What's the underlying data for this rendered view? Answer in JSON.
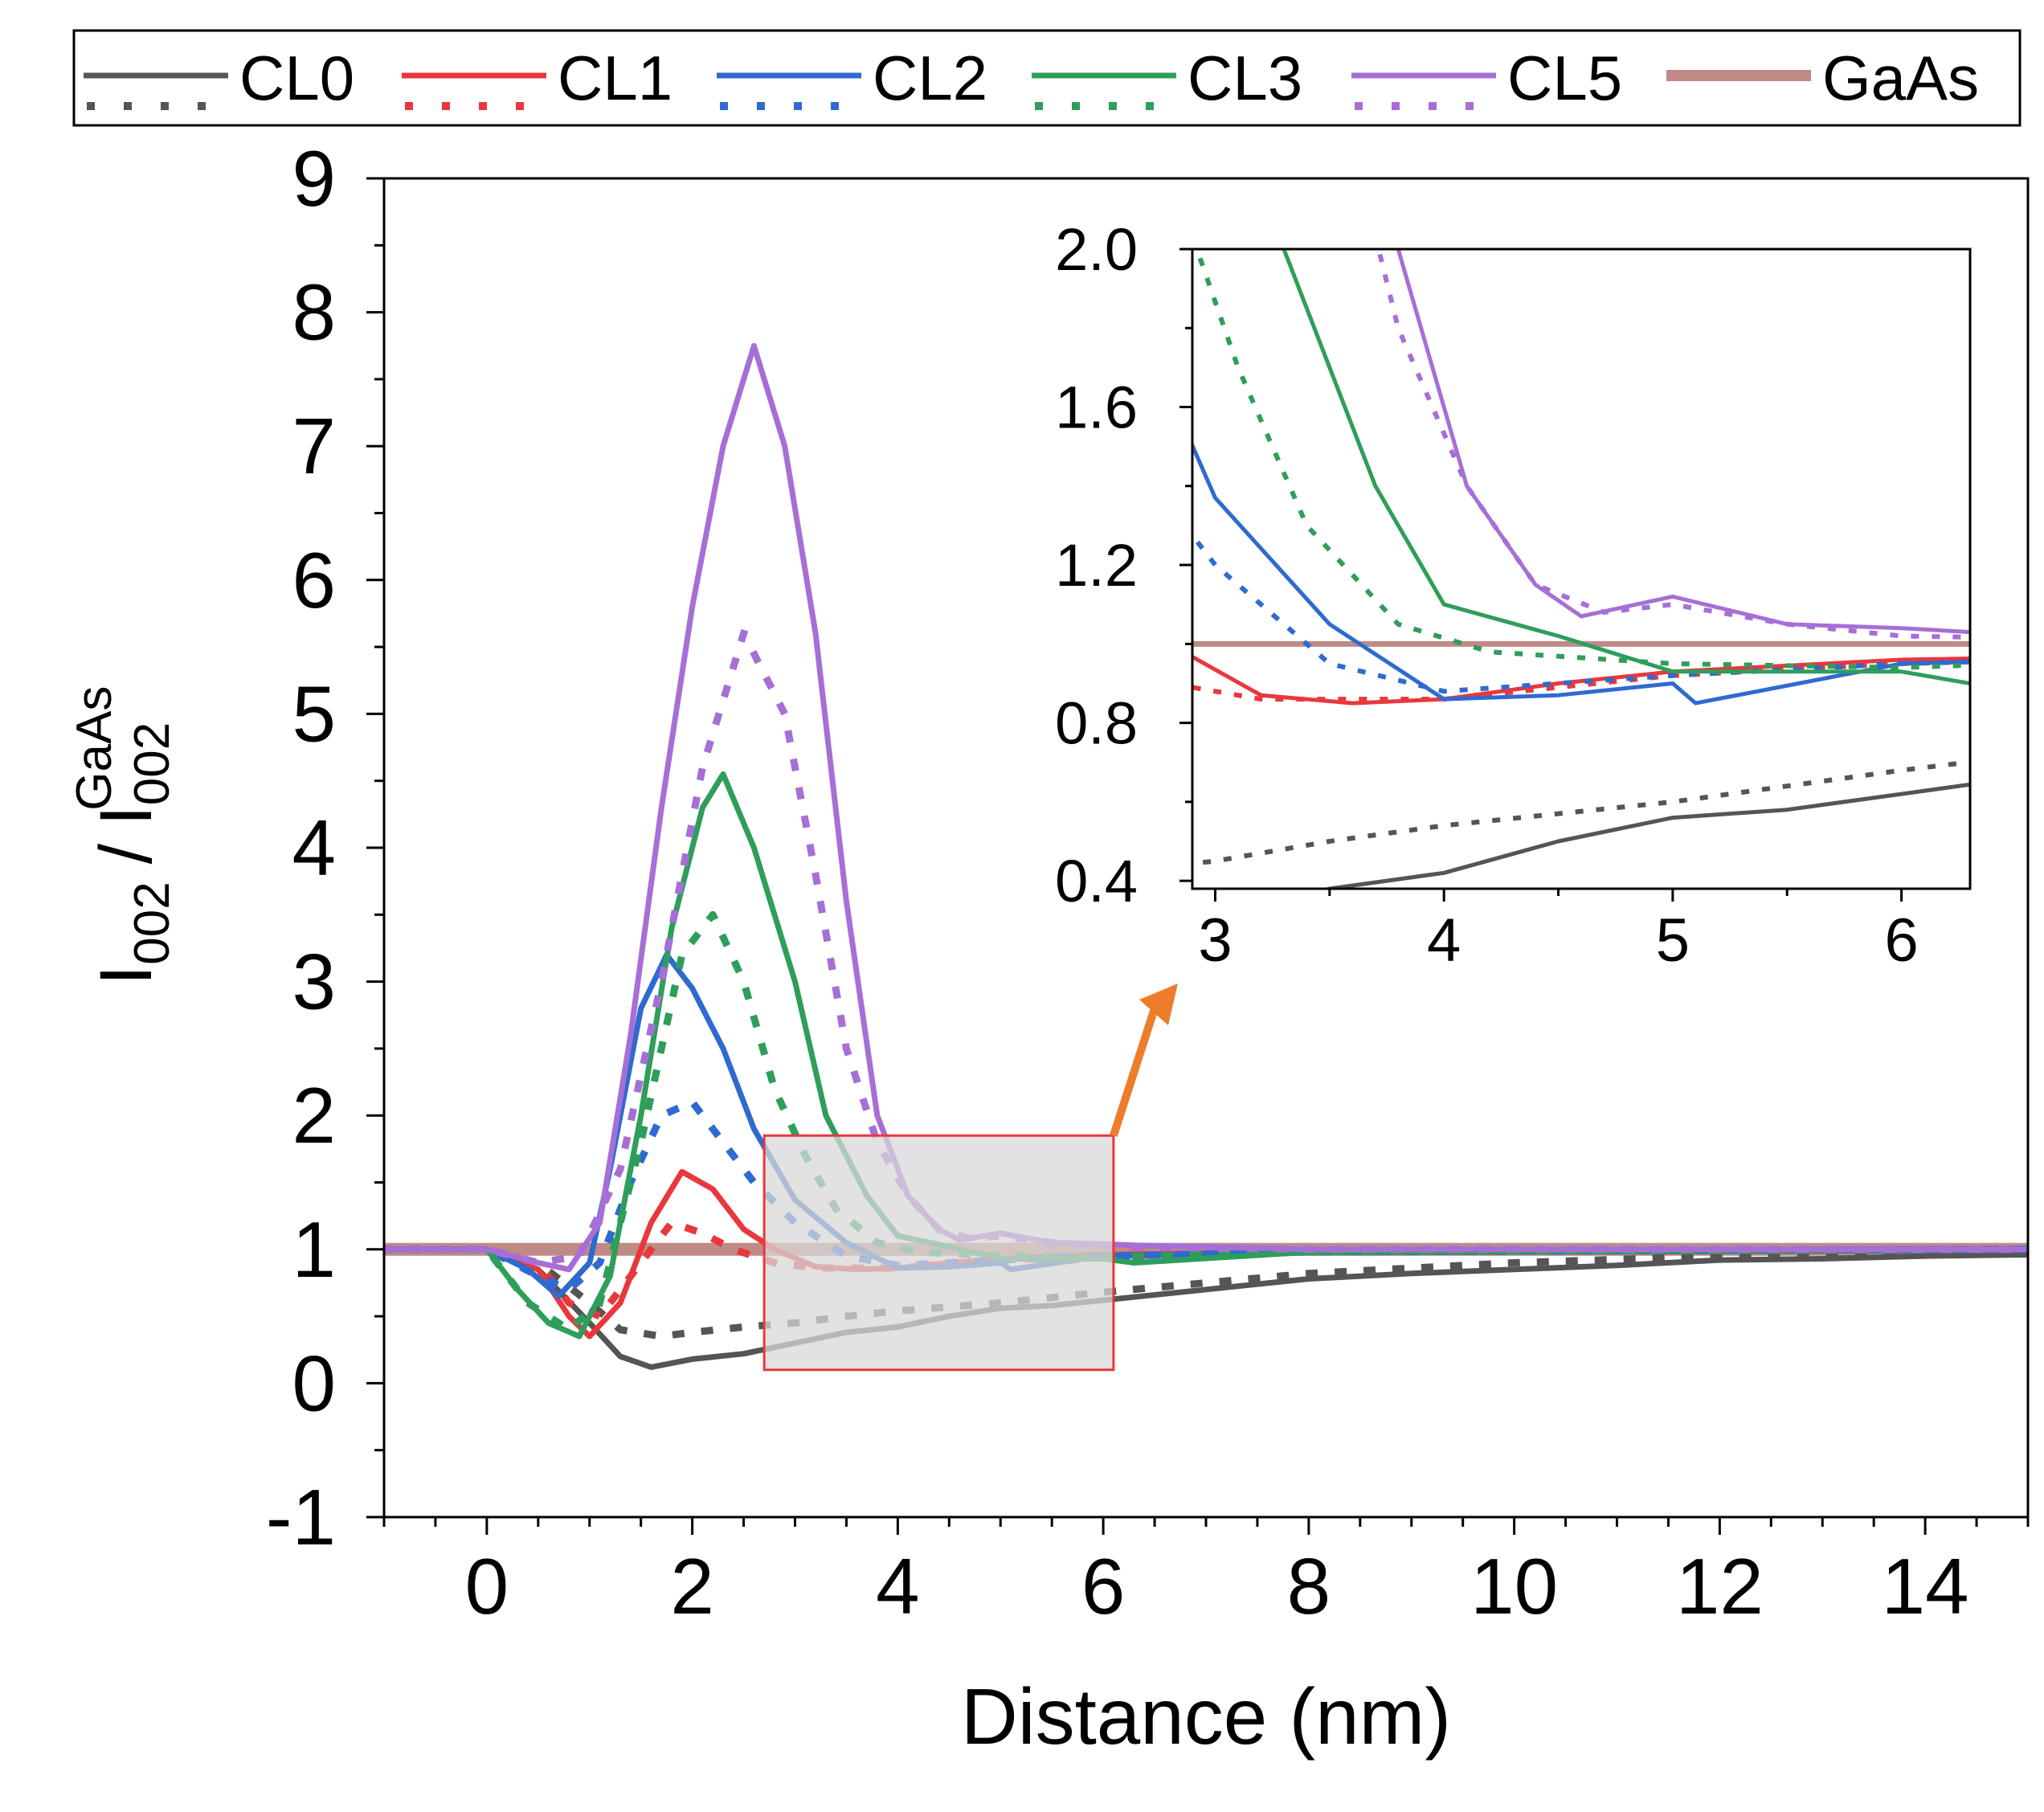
{
  "chart_data": [
    {
      "type": "line",
      "role": "main",
      "title": "",
      "xlabel": "Distance (nm)",
      "ylabel": {
        "base": "I",
        "base_sub": "002",
        "sep": "/",
        "ref": "I",
        "ref_sub": "002",
        "ref_sup": "GaAs"
      },
      "xlim": [
        -1,
        15
      ],
      "ylim": [
        -1,
        9
      ],
      "x_ticks": [
        "0",
        "2",
        "4",
        "6",
        "8",
        "10",
        "12",
        "14"
      ],
      "y_ticks": [
        "-1",
        "0",
        "1",
        "2",
        "3",
        "4",
        "5",
        "6",
        "7",
        "8",
        "9"
      ],
      "legend_position": "top",
      "legend": [
        "CL0",
        "CL1",
        "CL2",
        "CL3",
        "CL5",
        "GaAs"
      ],
      "series": [
        {
          "name": "CL0",
          "style": "solid",
          "color": "#555555",
          "x": [
            -1,
            0,
            0.5,
            1.0,
            1.3,
            1.6,
            2.0,
            2.5,
            3,
            3.5,
            4,
            4.5,
            5,
            5.5,
            6,
            7,
            8,
            9,
            10,
            11,
            12,
            13,
            14,
            15
          ],
          "y": [
            1.0,
            1.0,
            0.85,
            0.45,
            0.2,
            0.12,
            0.18,
            0.22,
            0.3,
            0.38,
            0.42,
            0.5,
            0.56,
            0.58,
            0.62,
            0.7,
            0.78,
            0.82,
            0.85,
            0.88,
            0.92,
            0.93,
            0.95,
            0.96
          ]
        },
        {
          "name": "CL0",
          "style": "dotted",
          "color": "#555555",
          "x": [
            -1,
            0,
            0.5,
            1.0,
            1.3,
            1.7,
            2.0,
            2.5,
            3,
            3.5,
            4,
            5,
            6,
            7,
            8,
            10,
            12,
            15
          ],
          "y": [
            1.0,
            1.0,
            0.9,
            0.6,
            0.4,
            0.35,
            0.38,
            0.42,
            0.45,
            0.5,
            0.54,
            0.6,
            0.68,
            0.75,
            0.82,
            0.9,
            0.95,
            0.98
          ]
        },
        {
          "name": "CL1",
          "style": "solid",
          "color": "#e8383d",
          "x": [
            -1,
            0,
            0.5,
            0.8,
            1.0,
            1.3,
            1.6,
            1.9,
            2.2,
            2.5,
            2.8,
            3.2,
            3.6,
            4,
            4.5,
            5,
            6,
            8,
            10,
            15
          ],
          "y": [
            1.0,
            1.0,
            0.85,
            0.5,
            0.35,
            0.6,
            1.2,
            1.58,
            1.45,
            1.15,
            1.0,
            0.87,
            0.85,
            0.86,
            0.9,
            0.93,
            0.96,
            0.98,
            0.99,
            1.0
          ]
        },
        {
          "name": "CL1",
          "style": "dotted",
          "color": "#e8383d",
          "x": [
            -1,
            0,
            0.5,
            0.8,
            1.1,
            1.4,
            1.8,
            2.1,
            2.4,
            2.8,
            3.2,
            4,
            5,
            6,
            8,
            15
          ],
          "y": [
            1.0,
            1.0,
            0.9,
            0.6,
            0.5,
            0.8,
            1.2,
            1.12,
            1.0,
            0.9,
            0.86,
            0.86,
            0.92,
            0.95,
            0.98,
            1.0
          ]
        },
        {
          "name": "CL2",
          "style": "solid",
          "color": "#2f6ad0",
          "x": [
            -1,
            0,
            0.4,
            0.7,
            1.0,
            1.2,
            1.5,
            1.75,
            2.0,
            2.3,
            2.6,
            3.0,
            3.5,
            4,
            4.5,
            5,
            5.1,
            6,
            8,
            15
          ],
          "y": [
            1.0,
            1.0,
            0.85,
            0.65,
            0.9,
            1.6,
            2.8,
            3.2,
            2.95,
            2.5,
            1.9,
            1.37,
            1.05,
            0.86,
            0.87,
            0.9,
            0.85,
            0.95,
            0.98,
            1.0
          ]
        },
        {
          "name": "CL2",
          "style": "dotted",
          "color": "#2f6ad0",
          "x": [
            -1,
            0,
            0.5,
            0.8,
            1.1,
            1.4,
            1.7,
            2.0,
            2.3,
            2.6,
            3.0,
            3.5,
            4,
            5,
            6,
            8,
            15
          ],
          "y": [
            1.0,
            1.0,
            0.8,
            0.7,
            0.9,
            1.5,
            2.0,
            2.1,
            1.8,
            1.5,
            1.2,
            0.95,
            0.88,
            0.92,
            0.95,
            0.98,
            1.0
          ]
        },
        {
          "name": "CL3",
          "style": "solid",
          "color": "#2e9e5b",
          "x": [
            -1,
            0,
            0.3,
            0.6,
            0.9,
            1.2,
            1.5,
            1.8,
            2.1,
            2.3,
            2.6,
            3.0,
            3.3,
            3.7,
            4,
            4.5,
            5,
            5.5,
            6,
            6.3,
            8,
            15
          ],
          "y": [
            1.0,
            1.0,
            0.7,
            0.45,
            0.35,
            0.8,
            2.0,
            3.4,
            4.3,
            4.55,
            4.0,
            3.0,
            2.0,
            1.4,
            1.1,
            1.02,
            0.93,
            0.93,
            0.93,
            0.9,
            0.98,
            1.0
          ]
        },
        {
          "name": "CL3",
          "style": "dotted",
          "color": "#2e9e5b",
          "x": [
            -1,
            0,
            0.4,
            0.8,
            1.1,
            1.5,
            1.9,
            2.2,
            2.5,
            2.8,
            3.1,
            3.4,
            3.8,
            4.2,
            5,
            6,
            8,
            15
          ],
          "y": [
            1.0,
            1.0,
            0.6,
            0.4,
            0.6,
            1.8,
            3.2,
            3.5,
            3.0,
            2.2,
            1.7,
            1.3,
            1.05,
            0.98,
            0.95,
            0.94,
            0.98,
            1.0
          ]
        },
        {
          "name": "CL5",
          "style": "solid",
          "color": "#a66fd6",
          "x": [
            -1,
            0,
            0.5,
            0.8,
            1.1,
            1.4,
            1.7,
            2.0,
            2.3,
            2.6,
            2.9,
            3.2,
            3.5,
            3.8,
            4.1,
            4.4,
            4.6,
            5.0,
            5.5,
            6,
            6.3,
            8,
            15
          ],
          "y": [
            1.0,
            1.0,
            0.9,
            0.85,
            1.2,
            2.6,
            4.3,
            5.8,
            7.0,
            7.75,
            7.0,
            5.6,
            3.6,
            2.0,
            1.4,
            1.15,
            1.07,
            1.12,
            1.05,
            1.04,
            1.03,
            1.0,
            1.0
          ]
        },
        {
          "name": "CL5",
          "style": "dotted",
          "color": "#a66fd6",
          "x": [
            -1,
            0,
            0.5,
            0.9,
            1.3,
            1.7,
            2.1,
            2.5,
            2.9,
            3.2,
            3.5,
            3.8,
            4.1,
            4.4,
            4.7,
            5.0,
            5.5,
            6,
            8,
            15
          ],
          "y": [
            1.0,
            1.0,
            0.9,
            0.95,
            1.6,
            3.0,
            4.6,
            5.6,
            5.0,
            3.8,
            2.5,
            1.8,
            1.4,
            1.15,
            1.08,
            1.1,
            1.05,
            1.02,
            1.0,
            1.0
          ]
        },
        {
          "name": "GaAs",
          "style": "thick",
          "color": "#c08a86",
          "x": [
            -1,
            15
          ],
          "y": [
            1.0,
            1.0
          ]
        }
      ],
      "zoom_box": {
        "xlim": [
          2.7,
          6.1
        ],
        "ylim": [
          0.1,
          1.85
        ],
        "fill": "#d8d8d8",
        "stroke": "#e8383d"
      },
      "arrow_color": "#ee7d2b"
    },
    {
      "type": "line",
      "role": "inset",
      "xlim": [
        2.9,
        6.3
      ],
      "ylim": [
        0.38,
        2.0
      ],
      "x_ticks": [
        "3",
        "4",
        "5",
        "6"
      ],
      "y_ticks": [
        "0.4",
        "0.8",
        "1.2",
        "1.6",
        "2.0"
      ],
      "series_ref": "main"
    }
  ]
}
